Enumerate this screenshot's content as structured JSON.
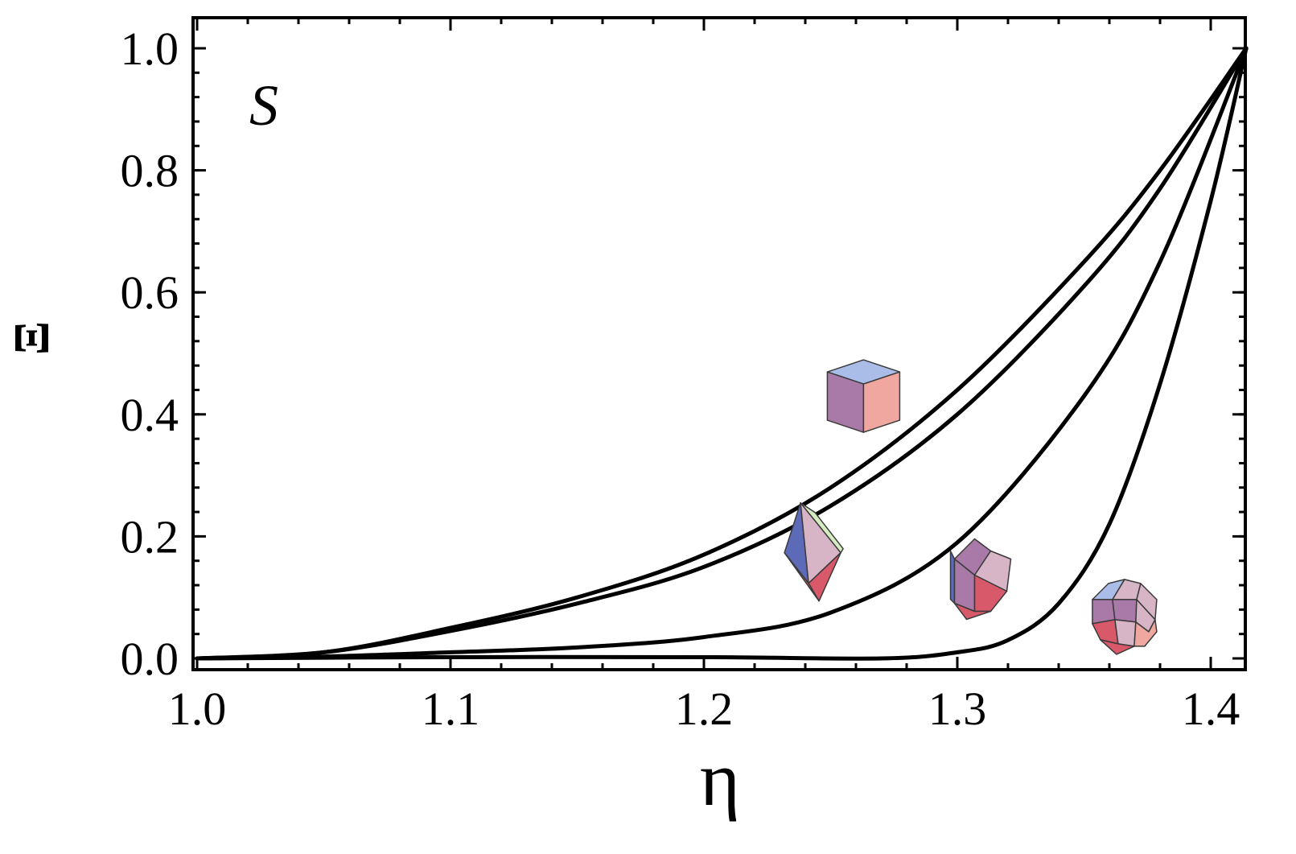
{
  "chart_data": {
    "type": "line",
    "title": "",
    "panel_label": "S",
    "xlabel": "η",
    "ylabel": "Ξ",
    "xlim": [
      1.0,
      1.414
    ],
    "ylim": [
      -0.02,
      1.05
    ],
    "x_ticks": [
      1.0,
      1.1,
      1.2,
      1.3,
      1.4
    ],
    "x_tick_labels": [
      "1.0",
      "1.1",
      "1.2",
      "1.3",
      "1.4"
    ],
    "y_ticks": [
      0.0,
      0.2,
      0.4,
      0.6,
      0.8,
      1.0
    ],
    "y_tick_labels": [
      "0.0",
      "0.2",
      "0.4",
      "0.6",
      "0.8",
      "1.0"
    ],
    "grid": false,
    "legend": "none",
    "series": [
      {
        "x": [
          1.0,
          1.05,
          1.1,
          1.15,
          1.2,
          1.25,
          1.3,
          1.35,
          1.38,
          1.414
        ],
        "values": [
          0.0,
          0.01,
          0.05,
          0.1,
          0.17,
          0.28,
          0.44,
          0.65,
          0.8,
          1.0
        ]
      },
      {
        "x": [
          1.0,
          1.05,
          1.1,
          1.15,
          1.2,
          1.25,
          1.3,
          1.35,
          1.38,
          1.414
        ],
        "values": [
          0.0,
          0.01,
          0.045,
          0.09,
          0.15,
          0.25,
          0.4,
          0.61,
          0.77,
          1.0
        ]
      },
      {
        "x": [
          1.0,
          1.05,
          1.1,
          1.15,
          1.2,
          1.25,
          1.3,
          1.35,
          1.38,
          1.414
        ],
        "values": [
          0.0,
          0.003,
          0.01,
          0.018,
          0.035,
          0.075,
          0.19,
          0.43,
          0.65,
          1.0
        ]
      },
      {
        "x": [
          1.0,
          1.1,
          1.2,
          1.27,
          1.3,
          1.32,
          1.34,
          1.36,
          1.38,
          1.4,
          1.414
        ],
        "values": [
          0.0,
          0.002,
          0.002,
          0.0,
          0.01,
          0.03,
          0.09,
          0.22,
          0.45,
          0.75,
          1.0
        ]
      }
    ],
    "insets": [
      {
        "shape": "cube-icon",
        "x": 1.263,
        "y": 0.43
      },
      {
        "shape": "octahedron-icon",
        "x": 1.247,
        "y": 0.16
      },
      {
        "shape": "rhombic-dodecahedron-icon",
        "x": 1.31,
        "y": 0.13
      },
      {
        "shape": "truncated-polyhedron-icon",
        "x": 1.366,
        "y": 0.07
      }
    ],
    "colors": {
      "line": "#000000",
      "face_blue": "#a9bde8",
      "face_purple": "#a97aa8",
      "face_pink": "#efa7a0",
      "face_red": "#d85a6a",
      "face_lightpink": "#d7b4c6",
      "face_dark_blue": "#5d6ab8",
      "face_green": "#d6ecc0"
    }
  }
}
